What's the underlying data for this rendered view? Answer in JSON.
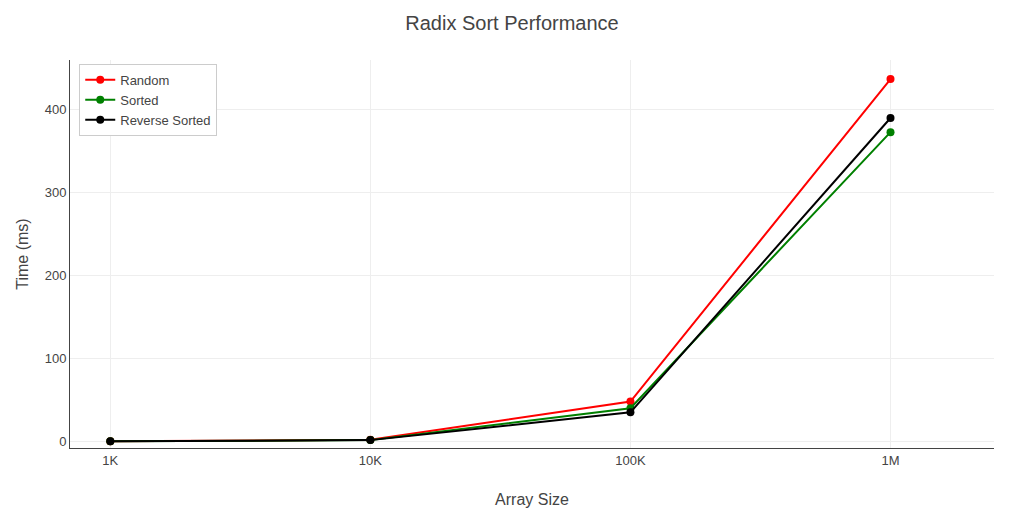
{
  "chart_data": {
    "type": "line",
    "title": "Radix Sort Performance",
    "xlabel": "Array Size",
    "ylabel": "Time (ms)",
    "x": [
      1000,
      10000,
      100000,
      1000000
    ],
    "series": [
      {
        "name": "Random",
        "color": "red",
        "values": [
          0.1,
          2.0,
          48,
          437
        ],
        "marker": "circle"
      },
      {
        "name": "Sorted",
        "color": "green",
        "values": [
          0.05,
          1.5,
          40,
          373
        ],
        "marker": "circle"
      },
      {
        "name": "Reverse Sorted",
        "color": "black",
        "values": [
          0.05,
          1.5,
          35,
          390
        ],
        "marker": "circle"
      }
    ],
    "log": "x",
    "xlim": [
      700,
      2500000
    ],
    "xticks": [
      {
        "value": 1000,
        "label": "1K"
      },
      {
        "value": 10000,
        "label": "10K"
      },
      {
        "value": 100000,
        "label": "100K"
      },
      {
        "value": 1000000,
        "label": "1M"
      }
    ],
    "ylim": [
      -8,
      460
    ],
    "yticks": [
      0,
      100,
      200,
      300,
      400
    ],
    "grid": true,
    "legend": "upper left"
  }
}
